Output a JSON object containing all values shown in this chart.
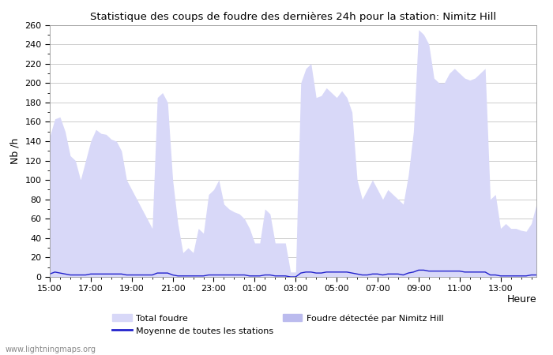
{
  "title": "Statistique des coups de foudre des dernières 24h pour la station: Nimitz Hill",
  "xlabel": "Heure",
  "ylabel": "Nb /h",
  "ylim": [
    0,
    260
  ],
  "yticks": [
    0,
    20,
    40,
    60,
    80,
    100,
    120,
    140,
    160,
    180,
    200,
    220,
    240,
    260
  ],
  "xtick_labels": [
    "15:00",
    "17:00",
    "19:00",
    "21:00",
    "23:00",
    "01:00",
    "03:00",
    "05:00",
    "07:00",
    "09:00",
    "11:00",
    "13:00"
  ],
  "bg_color": "#ffffff",
  "grid_color": "#cccccc",
  "fill_color": "#d8d8f8",
  "line_color_moyenne": "#2222cc",
  "watermark": "www.lightningmaps.org",
  "total_foudre": [
    145,
    163,
    165,
    150,
    125,
    120,
    100,
    120,
    140,
    152,
    148,
    147,
    142,
    140,
    130,
    100,
    90,
    80,
    70,
    60,
    50,
    185,
    190,
    180,
    100,
    55,
    25,
    30,
    25,
    50,
    45,
    85,
    90,
    100,
    75,
    70,
    67,
    65,
    60,
    50,
    35,
    35,
    70,
    65,
    35,
    35,
    35,
    5,
    5,
    200,
    215,
    220,
    185,
    187,
    195,
    190,
    185,
    192,
    185,
    170,
    100,
    80,
    90,
    100,
    90,
    80,
    90,
    85,
    80,
    75,
    105,
    150,
    255,
    250,
    240,
    205,
    200,
    200,
    210,
    215,
    210,
    205,
    203,
    205,
    210,
    215,
    80,
    85,
    50,
    55,
    50,
    50,
    48,
    47,
    55,
    75
  ],
  "moyenne": [
    3,
    5,
    4,
    3,
    2,
    2,
    2,
    2,
    3,
    3,
    3,
    3,
    3,
    3,
    3,
    2,
    2,
    2,
    2,
    2,
    2,
    4,
    4,
    4,
    2,
    1,
    1,
    1,
    1,
    1,
    1,
    2,
    2,
    2,
    2,
    2,
    2,
    2,
    2,
    1,
    1,
    1,
    2,
    2,
    1,
    1,
    1,
    0,
    0,
    4,
    5,
    5,
    4,
    4,
    5,
    5,
    5,
    5,
    5,
    4,
    3,
    2,
    2,
    3,
    3,
    2,
    3,
    3,
    3,
    2,
    4,
    5,
    7,
    7,
    6,
    6,
    6,
    6,
    6,
    6,
    6,
    5,
    5,
    5,
    5,
    5,
    2,
    2,
    1,
    1,
    1,
    1,
    1,
    1,
    2,
    2
  ]
}
